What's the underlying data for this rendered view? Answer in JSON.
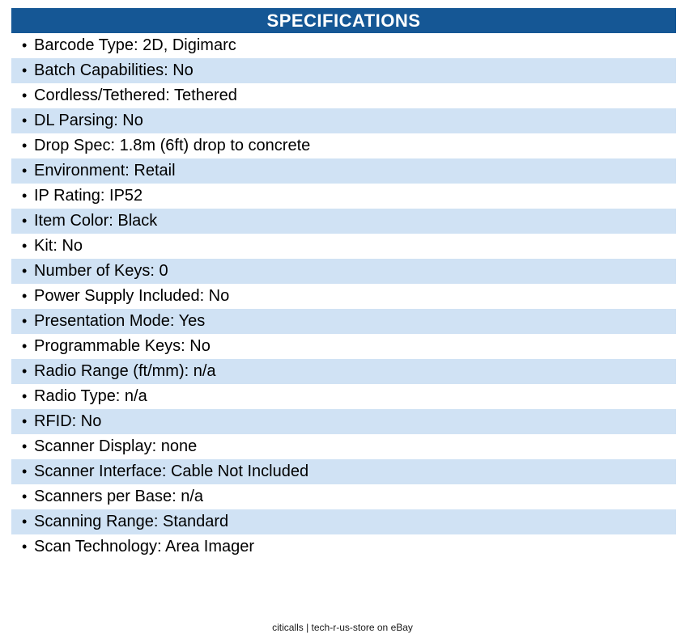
{
  "header": {
    "title": "SPECIFICATIONS"
  },
  "bullet": "•",
  "specs": [
    {
      "text": "Barcode Type: 2D, Digimarc"
    },
    {
      "text": "Batch Capabilities: No"
    },
    {
      "text": "Cordless/Tethered: Tethered"
    },
    {
      "text": "DL Parsing: No"
    },
    {
      "text": "Drop Spec: 1.8m (6ft) drop to concrete"
    },
    {
      "text": "Environment: Retail"
    },
    {
      "text": "IP Rating: IP52"
    },
    {
      "text": "Item Color: Black"
    },
    {
      "text": "Kit: No"
    },
    {
      "text": "Number of Keys: 0"
    },
    {
      "text": "Power Supply Included: No"
    },
    {
      "text": "Presentation Mode: Yes"
    },
    {
      "text": "Programmable Keys: No"
    },
    {
      "text": "Radio Range (ft/mm): n/a"
    },
    {
      "text": "Radio Type: n/a"
    },
    {
      "text": "RFID: No"
    },
    {
      "text": "Scanner Display: none"
    },
    {
      "text": "Scanner Interface: Cable Not Included"
    },
    {
      "text": "Scanners per Base: n/a"
    },
    {
      "text": "Scanning Range: Standard"
    },
    {
      "text": "Scan Technology: Area Imager"
    }
  ],
  "footer": {
    "text": "citicalls | tech-r-us-store on eBay"
  },
  "colors": {
    "header_bg": "#155795",
    "header_text": "#FFFFFF",
    "stripe_bg": "#D0E2F4",
    "body_text": "#000000"
  }
}
